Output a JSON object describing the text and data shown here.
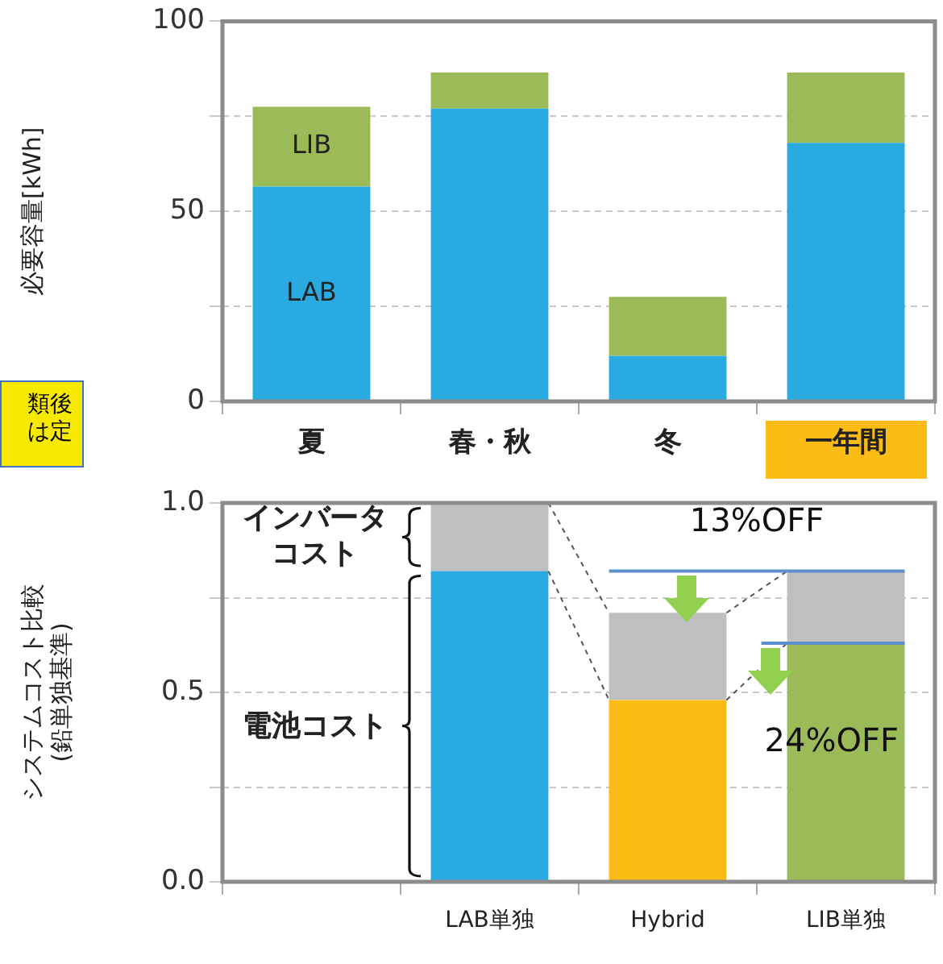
{
  "chart_data": [
    {
      "type": "bar",
      "ylabel": "必要容量[kWh]",
      "categories": [
        "夏",
        "春・秋",
        "冬",
        "一年間"
      ],
      "stacked": true,
      "series": [
        {
          "name": "LAB",
          "color": "#29abe2",
          "values": [
            56.5,
            77,
            12,
            68
          ]
        },
        {
          "name": "LIB",
          "color": "#9bbb59",
          "values": [
            21,
            9.5,
            15.5,
            18.5
          ]
        }
      ],
      "ylim": [
        0,
        100
      ],
      "yticks": [
        0,
        {
          "value": 25,
          "label": null
        },
        50,
        {
          "value": 75,
          "label": null
        },
        100
      ],
      "grid": "y",
      "legend": false,
      "annotations": [
        "類後は定"
      ]
    },
    {
      "type": "bar",
      "ylabel": "システムコスト比較\n(鉛単独基準)",
      "categories": [
        null,
        "LAB単独",
        "Hybrid",
        "LIB単独"
      ],
      "stacked": true,
      "series": [
        {
          "name": "電池コスト",
          "colors": [
            null,
            "#29abe2",
            "#fbbc15",
            "#9bbb59"
          ],
          "values": [
            null,
            0.82,
            0.48,
            0.63
          ]
        },
        {
          "name": "インバータコスト",
          "color": "#bfbfbf",
          "values": [
            null,
            0.18,
            0.23,
            0.19
          ]
        }
      ],
      "ylim": [
        0,
        1
      ],
      "yticks": [
        {
          "value": 0,
          "label": "0.0"
        },
        {
          "value": 0.25,
          "label": null
        },
        {
          "value": 0.5,
          "label": "0.5"
        },
        {
          "value": 0.75,
          "label": null
        },
        {
          "value": 1,
          "label": "1.0"
        }
      ],
      "grid": "y",
      "legend": false,
      "ref_lines": [
        {
          "axis": "y",
          "value": 0.82,
          "color": "#5b8fd0"
        },
        {
          "axis": "y",
          "value": 0.63,
          "color": "#5b8fd0"
        }
      ],
      "annotations": [
        {
          "text": "13%OFF",
          "y": 0.82
        },
        {
          "text": "24%OFF",
          "y": 0.63
        }
      ]
    }
  ]
}
